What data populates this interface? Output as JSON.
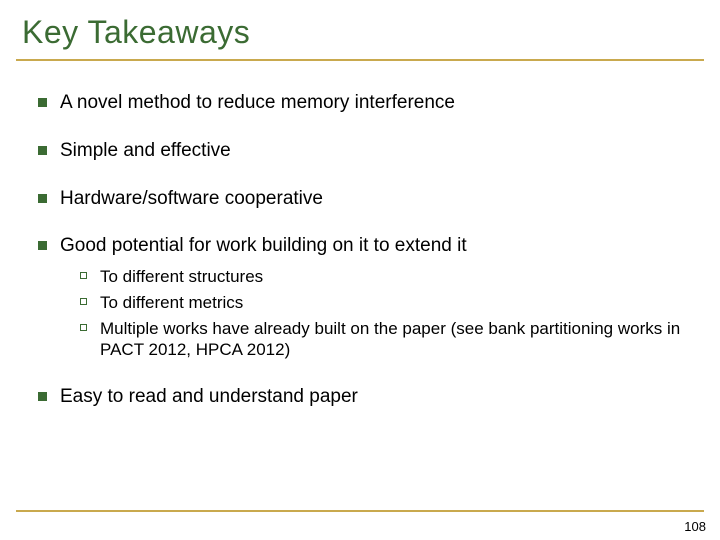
{
  "title": "Key Takeaways",
  "colors": {
    "title_text": "#3b6b33",
    "rule": "#c9a94e",
    "bullet_fill": "#3b6b33",
    "subbullet_border": "#3b6b33",
    "body_text": "#000000",
    "background": "#ffffff"
  },
  "typography": {
    "title_fontsize": 32,
    "bullet_fontsize": 19,
    "subbullet_fontsize": 17,
    "pagenum_fontsize": 13,
    "title_family": "Arial",
    "body_family": "Verdana"
  },
  "bullets": [
    {
      "text": "A novel method to reduce memory interference"
    },
    {
      "text": "Simple and effective"
    },
    {
      "text": "Hardware/software cooperative"
    },
    {
      "text": "Good potential for work building on it to extend it",
      "sub": [
        "To different structures",
        "To different metrics",
        "Multiple works have already built on the paper (see bank partitioning works in PACT 2012, HPCA 2012)"
      ]
    },
    {
      "text": "Easy to read and understand paper"
    }
  ],
  "page_number": "108"
}
